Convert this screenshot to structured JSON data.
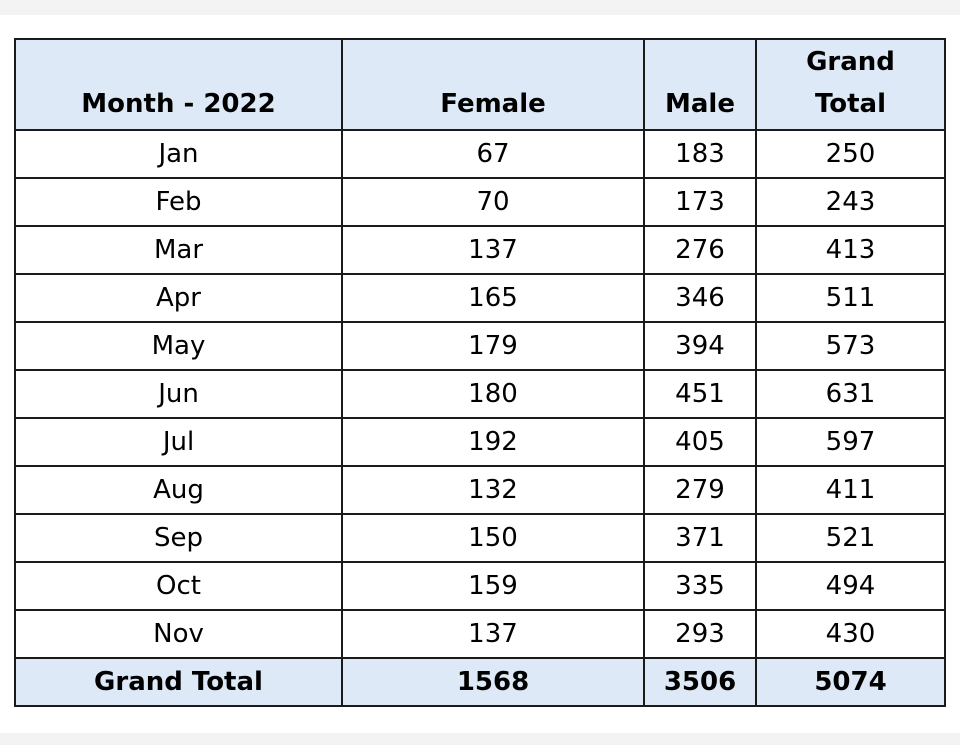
{
  "table": {
    "header": [
      "Month - 2022",
      "Female",
      "Male",
      "Grand Total"
    ],
    "rows": [
      [
        "Jan",
        67,
        183,
        250
      ],
      [
        "Feb",
        70,
        173,
        243
      ],
      [
        "Mar",
        137,
        276,
        413
      ],
      [
        "Apr",
        165,
        346,
        511
      ],
      [
        "May",
        179,
        394,
        573
      ],
      [
        "Jun",
        180,
        451,
        631
      ],
      [
        "Jul",
        192,
        405,
        597
      ],
      [
        "Aug",
        132,
        279,
        411
      ],
      [
        "Sep",
        150,
        371,
        521
      ],
      [
        "Oct",
        159,
        335,
        494
      ],
      [
        "Nov",
        137,
        293,
        430
      ]
    ],
    "total": [
      "Grand Total",
      1568,
      3506,
      5074
    ]
  }
}
